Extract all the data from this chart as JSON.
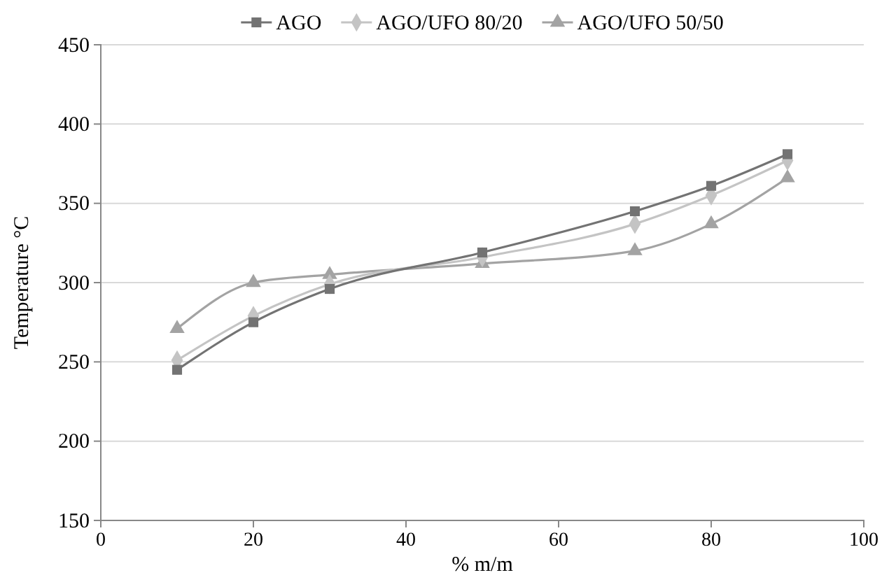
{
  "chart_data": {
    "type": "line",
    "xlabel": "% m/m",
    "ylabel": "Temperature °C",
    "xlim": [
      0,
      100
    ],
    "xticks": [
      0,
      20,
      40,
      60,
      80,
      100
    ],
    "ylim": [
      150,
      450
    ],
    "yticks": [
      150,
      200,
      250,
      300,
      350,
      400,
      450
    ],
    "grid": "y",
    "legend": "top",
    "line_style": "solid",
    "x": [
      10,
      20,
      30,
      50,
      70,
      80,
      90
    ],
    "series": [
      {
        "name": "AGO",
        "color": "#737373",
        "marker": "square",
        "values": [
          245,
          275,
          296,
          319,
          345,
          361,
          381
        ]
      },
      {
        "name": "AGO/UFO 80/20",
        "color": "#c4c4c4",
        "marker": "diamond",
        "values": [
          251,
          279,
          299,
          316,
          337,
          355,
          377
        ]
      },
      {
        "name": "AGO/UFO 50/50",
        "color": "#a3a3a3",
        "marker": "triangle",
        "values": [
          271,
          300,
          305,
          312,
          320,
          337,
          366
        ]
      }
    ]
  }
}
